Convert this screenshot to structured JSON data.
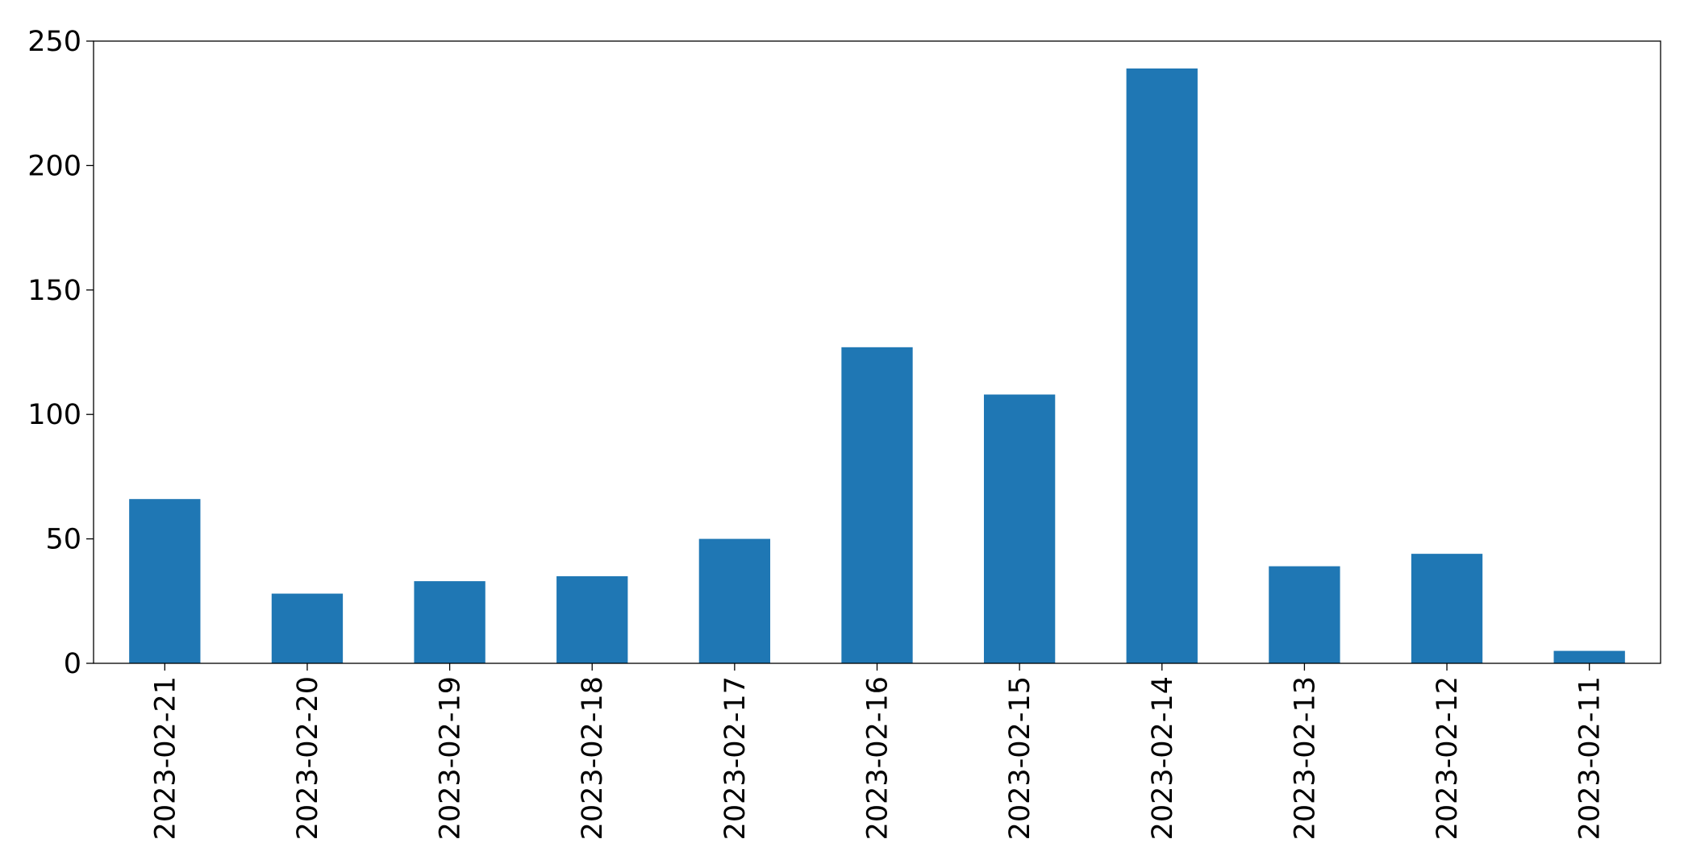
{
  "chart_data": {
    "type": "bar",
    "categories": [
      "2023-02-21",
      "2023-02-20",
      "2023-02-19",
      "2023-02-18",
      "2023-02-17",
      "2023-02-16",
      "2023-02-15",
      "2023-02-14",
      "2023-02-13",
      "2023-02-12",
      "2023-02-11"
    ],
    "values": [
      66,
      28,
      33,
      35,
      50,
      127,
      108,
      239,
      39,
      44,
      5
    ],
    "color": "#1f77b4",
    "ylim": [
      0,
      250
    ],
    "yticks": [
      0,
      50,
      100,
      150,
      200,
      250
    ],
    "grid": false
  }
}
